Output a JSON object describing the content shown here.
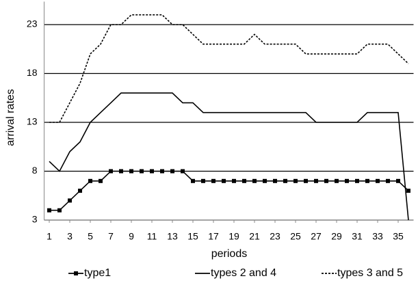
{
  "chart_data": {
    "type": "line",
    "x_label": "periods",
    "y_label": "arrival rates",
    "x": [
      1,
      2,
      3,
      4,
      5,
      6,
      7,
      8,
      9,
      10,
      11,
      12,
      13,
      14,
      15,
      16,
      17,
      18,
      19,
      20,
      21,
      22,
      23,
      24,
      25,
      26,
      27,
      28,
      29,
      30,
      31,
      32,
      33,
      34,
      35,
      36
    ],
    "series": [
      {
        "name": "type1",
        "color": "#000000",
        "dash": "solid",
        "marker": "square",
        "values": [
          4,
          4,
          5,
          6,
          7,
          7,
          8,
          8,
          8,
          8,
          8,
          8,
          8,
          8,
          7,
          7,
          7,
          7,
          7,
          7,
          7,
          7,
          7,
          7,
          7,
          7,
          7,
          7,
          7,
          7,
          7,
          7,
          7,
          7,
          7,
          6
        ]
      },
      {
        "name": "types 2 and 4",
        "color": "#000000",
        "dash": "solid",
        "marker": "none",
        "values": [
          9,
          8,
          10,
          11,
          13,
          14,
          15,
          16,
          16,
          16,
          16,
          16,
          16,
          15,
          15,
          14,
          14,
          14,
          14,
          14,
          14,
          14,
          14,
          14,
          14,
          14,
          13,
          13,
          13,
          13,
          13,
          14,
          14,
          14,
          14,
          3
        ]
      },
      {
        "name": "types 3 and 5",
        "color": "#000000",
        "dash": "dashed",
        "marker": "none",
        "values": [
          13,
          13,
          15,
          17,
          20,
          21,
          23,
          23,
          24,
          24,
          24,
          24,
          23,
          23,
          22,
          21,
          21,
          21,
          21,
          21,
          22,
          21,
          21,
          21,
          21,
          20,
          20,
          20,
          20,
          20,
          20,
          21,
          21,
          21,
          20,
          19
        ]
      }
    ],
    "xlim": [
      0.5,
      36.5
    ],
    "ylim": [
      3,
      25
    ],
    "xticks": [
      1,
      3,
      5,
      7,
      9,
      11,
      13,
      15,
      17,
      19,
      21,
      23,
      25,
      27,
      29,
      31,
      33,
      35
    ],
    "yticks": [
      3,
      8,
      13,
      18,
      23
    ],
    "grid": true,
    "legend": "bottom"
  }
}
